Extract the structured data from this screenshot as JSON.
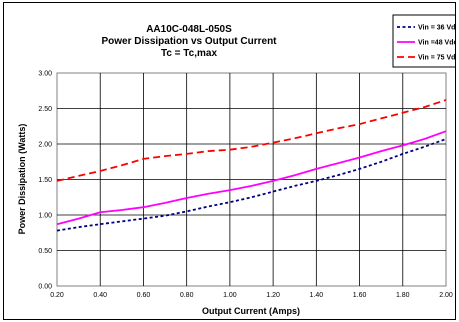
{
  "chart_data": {
    "type": "line",
    "title": [
      "AA10C-048L-050S",
      "Power Dissipation vs Output Current",
      "Tc = Tc,max"
    ],
    "xlabel": "Output Current (Amps)",
    "ylabel": "Power Dissipation (Watts)",
    "xlim": [
      0.2,
      2.0
    ],
    "ylim": [
      0.0,
      3.0
    ],
    "x_ticks": [
      "0.20",
      "0.40",
      "0.60",
      "0.80",
      "1.00",
      "1.20",
      "1.40",
      "1.60",
      "1.80",
      "2.00"
    ],
    "y_ticks": [
      "0.00",
      "0.50",
      "1.00",
      "1.50",
      "2.00",
      "2.50",
      "3.00"
    ],
    "grid": true,
    "legend_position": "top-right",
    "series": [
      {
        "name": "Vin = 36 Vdc",
        "color": "#000080",
        "dash": "dotted",
        "x": [
          0.2,
          0.3,
          0.4,
          0.5,
          0.6,
          0.7,
          0.8,
          0.9,
          1.0,
          1.1,
          1.2,
          1.3,
          1.4,
          1.5,
          1.6,
          1.7,
          1.8,
          1.9,
          2.0
        ],
        "values": [
          0.78,
          0.83,
          0.87,
          0.91,
          0.95,
          0.99,
          1.05,
          1.12,
          1.18,
          1.25,
          1.33,
          1.41,
          1.48,
          1.56,
          1.65,
          1.75,
          1.86,
          1.96,
          2.07
        ]
      },
      {
        "name": "Vin =48 Vdc",
        "color": "#ff00ff",
        "dash": "solid",
        "x": [
          0.2,
          0.3,
          0.4,
          0.5,
          0.6,
          0.7,
          0.8,
          0.9,
          1.0,
          1.1,
          1.2,
          1.3,
          1.4,
          1.5,
          1.6,
          1.7,
          1.8,
          1.9,
          2.0
        ],
        "values": [
          0.87,
          0.95,
          1.04,
          1.07,
          1.11,
          1.17,
          1.24,
          1.3,
          1.35,
          1.41,
          1.48,
          1.56,
          1.65,
          1.73,
          1.81,
          1.9,
          1.98,
          2.07,
          2.18
        ]
      },
      {
        "name": "Vin = 75 Vdc",
        "color": "#ff0000",
        "dash": "dashed",
        "x": [
          0.2,
          0.3,
          0.4,
          0.5,
          0.6,
          0.7,
          0.8,
          0.9,
          1.0,
          1.1,
          1.2,
          1.3,
          1.4,
          1.5,
          1.6,
          1.7,
          1.8,
          1.9,
          2.0
        ],
        "values": [
          1.48,
          1.55,
          1.62,
          1.7,
          1.79,
          1.83,
          1.86,
          1.9,
          1.92,
          1.96,
          2.02,
          2.08,
          2.15,
          2.22,
          2.28,
          2.36,
          2.44,
          2.52,
          2.62
        ]
      }
    ]
  }
}
